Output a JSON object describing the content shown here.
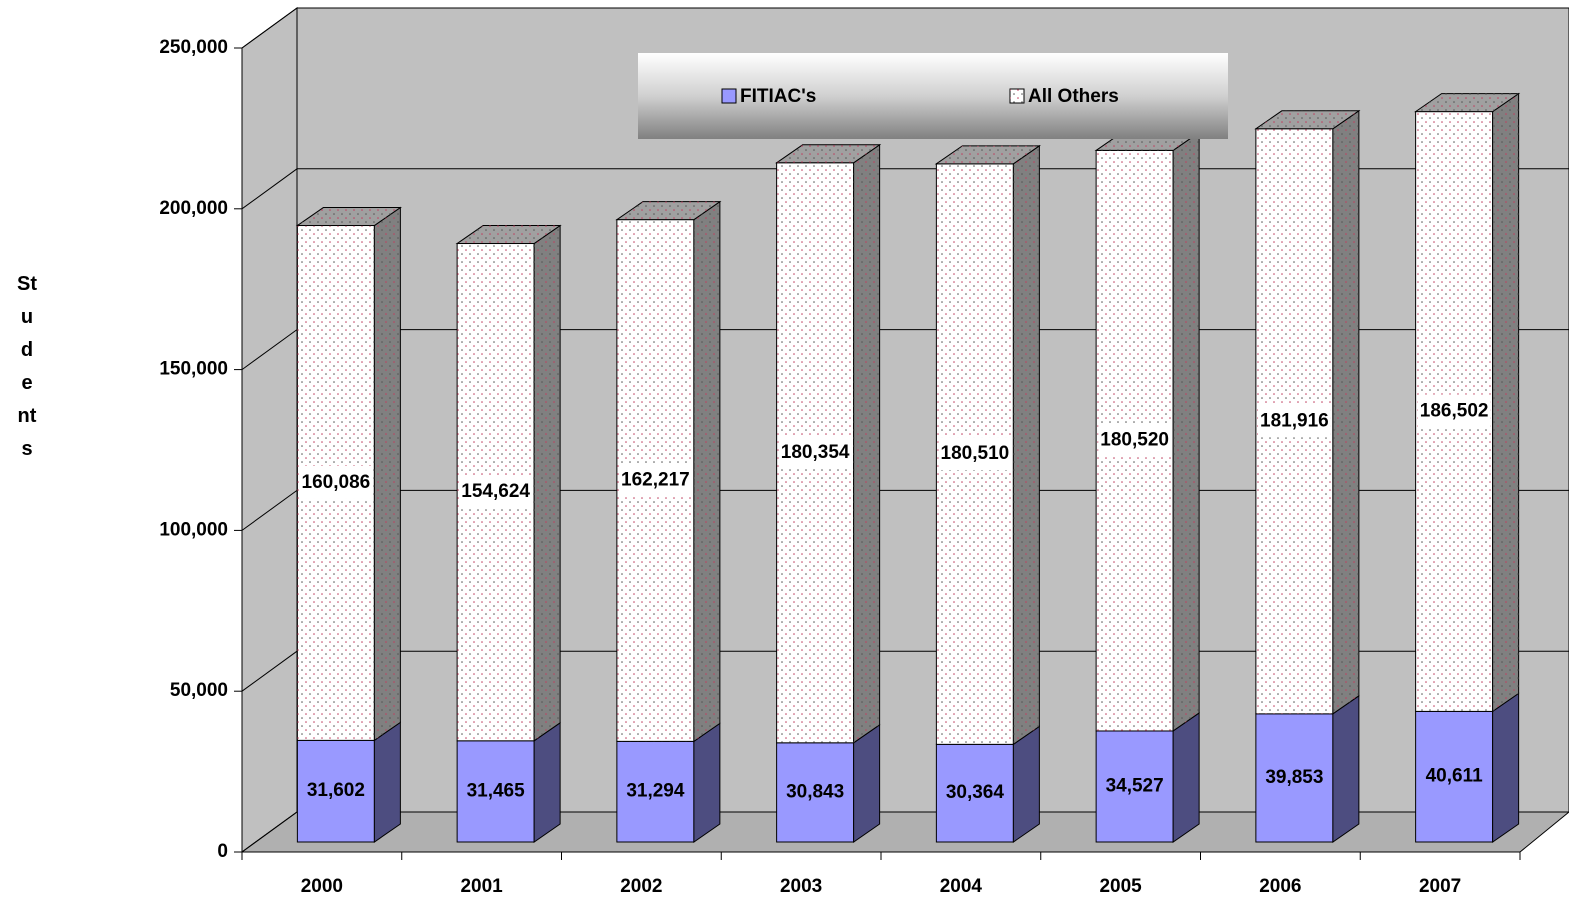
{
  "chart_data": {
    "type": "bar",
    "stacked": true,
    "y_label": "Students",
    "categories": [
      "2000",
      "2001",
      "2002",
      "2003",
      "2004",
      "2005",
      "2006",
      "2007"
    ],
    "series": [
      {
        "name": "FITIAC's",
        "color": "#9999ff",
        "values": [
          31602,
          31465,
          31294,
          30843,
          30364,
          34527,
          39853,
          40611
        ],
        "value_labels": [
          "31,602",
          "31,465",
          "31,294",
          "30,843",
          "30,364",
          "34,527",
          "39,853",
          "40,611"
        ]
      },
      {
        "name": "All Others",
        "color": "#ffffff",
        "values": [
          160086,
          154624,
          162217,
          180354,
          180510,
          180520,
          181916,
          186502
        ],
        "value_labels": [
          "160,086",
          "154,624",
          "162,217",
          "180,354",
          "180,510",
          "180,520",
          "181,916",
          "186,502"
        ]
      }
    ],
    "ylim": [
      0,
      250000
    ],
    "yticks": [
      0,
      {
        "value": 50000,
        "label": "50,000"
      },
      {
        "value": 100000,
        "label": "100,000"
      },
      {
        "value": 150000,
        "label": "150,000"
      },
      {
        "value": 200000,
        "label": "200,000"
      },
      {
        "value": 250000,
        "label": "250,000"
      }
    ],
    "grid": true,
    "legend": "top"
  }
}
